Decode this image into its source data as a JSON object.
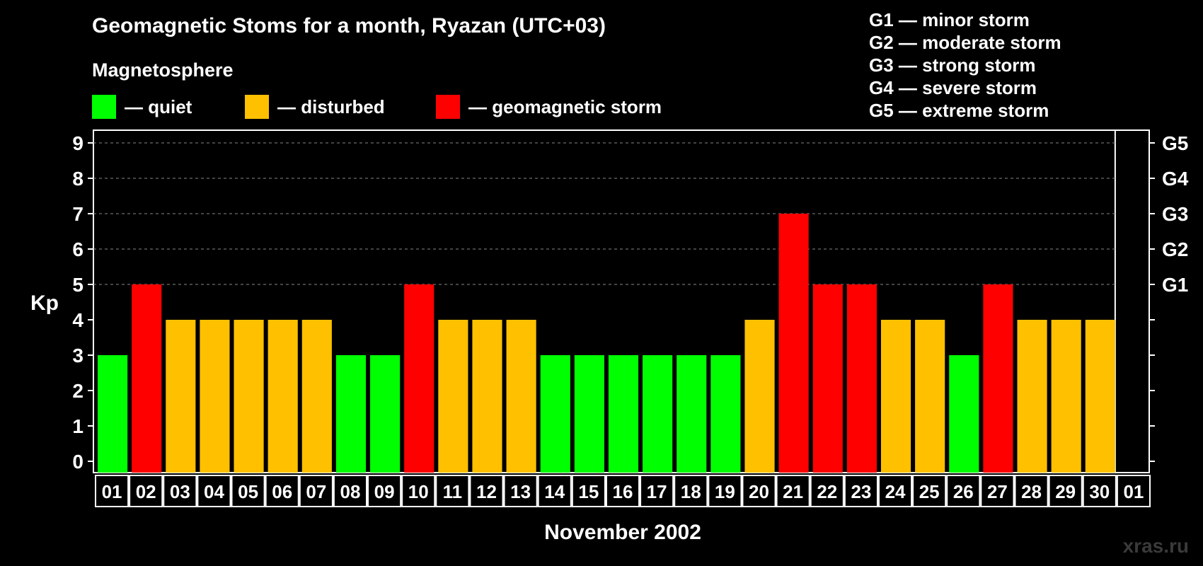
{
  "title": "Geomagnetic Stoms for a month, Ryazan (UTC+03)",
  "magnetosphere_label": "Magnetosphere",
  "legend": [
    {
      "label": "— quiet",
      "color": "#00ff00"
    },
    {
      "label": "— disturbed",
      "color": "#ffc000"
    },
    {
      "label": "— geomagnetic storm",
      "color": "#ff0000"
    }
  ],
  "g_legend": [
    "G1 — minor storm",
    "G2 — moderate storm",
    "G3 — strong storm",
    "G4 — severe storm",
    "G5 — extreme storm"
  ],
  "xlabel": "November 2002",
  "watermark": "xras.ru",
  "chart_data": {
    "type": "bar",
    "ylabel": "Kp",
    "ylim": [
      0,
      9
    ],
    "yticks": [
      "0",
      "1",
      "2",
      "3",
      "4",
      "5",
      "6",
      "7",
      "8",
      "9"
    ],
    "right_ticks": [
      {
        "value": 5,
        "label": "G1"
      },
      {
        "value": 6,
        "label": "G2"
      },
      {
        "value": 7,
        "label": "G3"
      },
      {
        "value": 8,
        "label": "G4"
      },
      {
        "value": 9,
        "label": "G5"
      }
    ],
    "grid": "dashed at 5-9",
    "categories": [
      "01",
      "02",
      "03",
      "04",
      "05",
      "06",
      "07",
      "08",
      "09",
      "10",
      "11",
      "12",
      "13",
      "14",
      "15",
      "16",
      "17",
      "18",
      "19",
      "20",
      "21",
      "22",
      "23",
      "24",
      "25",
      "26",
      "27",
      "28",
      "29",
      "30",
      "01"
    ],
    "values": [
      3,
      5,
      4,
      4,
      4,
      4,
      4,
      3,
      3,
      5,
      4,
      4,
      4,
      3,
      3,
      3,
      3,
      3,
      3,
      4,
      7,
      5,
      5,
      4,
      4,
      3,
      5,
      4,
      4,
      4,
      null
    ],
    "colors": {
      "quiet": "#00ff00",
      "disturbed": "#ffc000",
      "storm": "#ff0000"
    }
  }
}
